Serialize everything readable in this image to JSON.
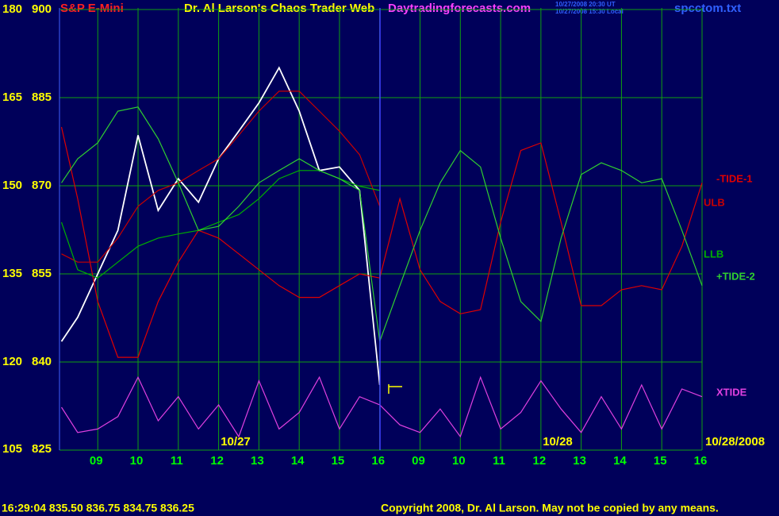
{
  "chart_data": {
    "type": "line",
    "title": "S&P E-Mini",
    "subtitle": "Dr. Al Larson's Chaos Trader Web",
    "site": "Daytradingforecasts.com",
    "timestamps": [
      "10/27/2008 20:30 UT",
      "10/27/2008 15:30 Local"
    ],
    "file": "spcctom.txt",
    "quote": "16:29:04 835.50 836.75 834.75 836.25",
    "copyright": "Copyright 2008, Dr. Al Larson. May not be copied by any means.",
    "date_labels": [
      "10/27",
      "10/28",
      "10/28/2008"
    ],
    "grid": true,
    "x": [
      -0.9,
      -0.5,
      0,
      0.5,
      1,
      1.5,
      2,
      2.5,
      3,
      3.5,
      4,
      4.5,
      5,
      5.5,
      6,
      6.5,
      7,
      7.5,
      8,
      8.5,
      9,
      9.5,
      10,
      10.5,
      11,
      11.5,
      12,
      12.5,
      13,
      13.5,
      14,
      14.5,
      15
    ],
    "xlim": [
      -0.95,
      15
    ],
    "xticks": [
      {
        "value": 0,
        "label": "09"
      },
      {
        "value": 1,
        "label": "10"
      },
      {
        "value": 2,
        "label": "11"
      },
      {
        "value": 3,
        "label": "12"
      },
      {
        "value": 4,
        "label": "13"
      },
      {
        "value": 5,
        "label": "14"
      },
      {
        "value": 6,
        "label": "15"
      },
      {
        "value": 7,
        "label": "16"
      },
      {
        "value": 8,
        "label": "09"
      },
      {
        "value": 9,
        "label": "10"
      },
      {
        "value": 10,
        "label": "11"
      },
      {
        "value": 11,
        "label": "12"
      },
      {
        "value": 12,
        "label": "13"
      },
      {
        "value": 13,
        "label": "14"
      },
      {
        "value": 14,
        "label": "15"
      },
      {
        "value": 15,
        "label": "16"
      }
    ],
    "ylim": [
      825,
      900
    ],
    "yticks": [
      825,
      840,
      855,
      870,
      885,
      900
    ],
    "y2lim": [
      105,
      180
    ],
    "y2ticks": [
      105,
      120,
      135,
      150,
      165,
      180
    ],
    "series": [
      {
        "color": "#ffffff",
        "values": [
          843.5,
          847.6,
          855.0,
          862.4,
          878.6,
          865.8,
          871.2,
          867.2,
          874.6,
          879.3,
          884.1,
          890.1,
          882.7,
          872.6,
          873.2,
          869.2,
          836.1,
          null,
          null,
          null,
          null,
          null,
          null,
          null,
          null,
          null,
          null,
          null,
          null,
          null,
          null,
          null,
          null
        ]
      },
      {
        "name": "-TIDE-1",
        "color": "#e00000",
        "values": [
          880.0,
          867.8,
          850.3,
          840.8,
          840.8,
          850.3,
          857.0,
          862.4,
          861.1,
          858.4,
          855.7,
          853.0,
          851.0,
          851.0,
          853.0,
          855.0,
          854.3,
          867.8,
          855.7,
          850.3,
          848.2,
          848.9,
          863.8,
          876.0,
          877.3,
          863.8,
          849.6,
          849.6,
          852.3,
          853.0,
          852.3,
          859.7,
          870.5
        ]
      },
      {
        "name": "ULB",
        "color": "#c80000",
        "values": [
          858.4,
          857.0,
          857.0,
          861.1,
          866.5,
          869.2,
          870.5,
          872.6,
          874.6,
          878.6,
          882.7,
          886.1,
          886.1,
          882.7,
          879.3,
          875.3,
          866.5,
          null,
          null,
          null,
          null,
          null,
          null,
          null,
          null,
          null,
          null,
          null,
          null,
          null,
          null,
          null,
          null
        ]
      },
      {
        "name": "LLB",
        "color": "#00b000",
        "values": [
          863.8,
          855.7,
          854.3,
          857.0,
          859.7,
          861.1,
          861.8,
          862.4,
          863.8,
          865.1,
          867.8,
          871.2,
          872.6,
          872.6,
          871.2,
          869.9,
          869.2,
          null,
          null,
          null,
          null,
          null,
          null,
          null,
          null,
          null,
          null,
          null,
          null,
          null,
          null,
          null,
          null
        ]
      },
      {
        "name": "+TIDE-2",
        "color": "#30d030",
        "values": [
          870.5,
          874.6,
          877.3,
          882.7,
          883.4,
          878.0,
          870.5,
          862.4,
          863.1,
          866.5,
          870.5,
          872.6,
          874.6,
          872.6,
          871.2,
          869.2,
          843.5,
          853.0,
          862.4,
          870.5,
          876.0,
          873.2,
          861.1,
          850.3,
          846.9,
          861.1,
          871.9,
          873.9,
          872.6,
          870.5,
          871.2,
          862.4,
          853.0
        ]
      },
      {
        "name": "XTIDE",
        "color": "#e040e0",
        "values": [
          832.3,
          828.0,
          828.6,
          830.7,
          837.4,
          830.0,
          834.1,
          828.6,
          832.7,
          827.3,
          836.8,
          828.6,
          831.4,
          837.4,
          828.6,
          834.1,
          832.7,
          829.3,
          828.0,
          832.0,
          827.3,
          837.4,
          828.6,
          831.4,
          836.8,
          832.0,
          828.0,
          834.1,
          828.6,
          836.1,
          828.6,
          835.4,
          834.1
        ]
      }
    ]
  }
}
